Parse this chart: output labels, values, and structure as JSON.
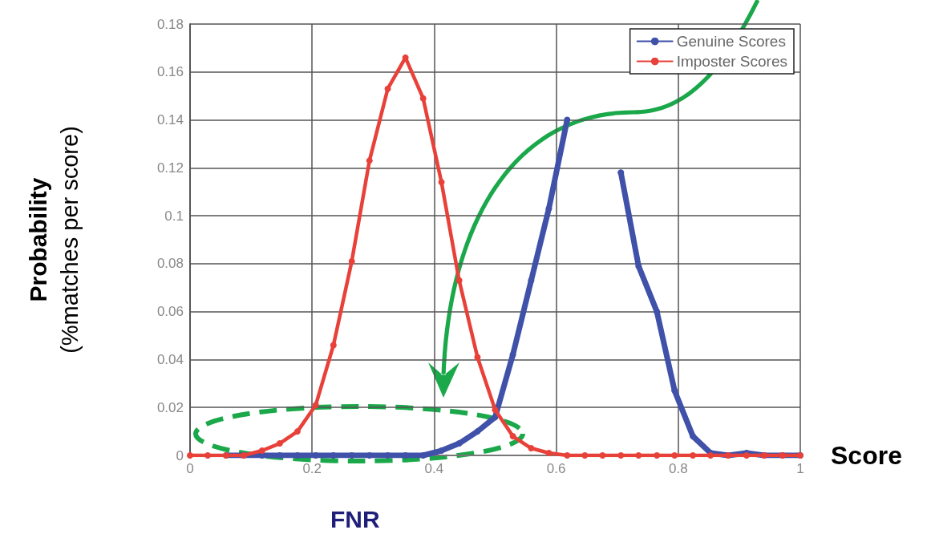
{
  "chart_data": {
    "type": "line",
    "xlabel": "Score",
    "ylabel": "Probability\n(%matches per score)",
    "x": [
      0,
      0.029,
      0.059,
      0.088,
      0.118,
      0.147,
      0.176,
      0.206,
      0.235,
      0.265,
      0.294,
      0.324,
      0.353,
      0.382,
      0.412,
      0.441,
      0.471,
      0.5,
      0.529,
      0.559,
      0.588,
      0.618,
      0.647,
      0.676,
      0.706,
      0.735,
      0.765,
      0.794,
      0.824,
      0.853,
      0.882,
      0.912,
      0.941,
      0.971,
      1
    ],
    "series": [
      {
        "name": "Genuine Scores",
        "color": "#3f51a8",
        "values": [
          null,
          null,
          0,
          0,
          0,
          0,
          0,
          0,
          0,
          0,
          0,
          0,
          0,
          0,
          0.002,
          0.005,
          0.01,
          0.016,
          0.042,
          0.073,
          0.103,
          0.14,
          null,
          null,
          0.118,
          0.079,
          0.06,
          0.027,
          0.008,
          0.001,
          0,
          0.001,
          0,
          0,
          0
        ]
      },
      {
        "name": "Imposter Scores",
        "color": "#e8413a",
        "values": [
          0,
          0,
          0,
          0,
          0.002,
          0.005,
          0.01,
          0.021,
          0.046,
          0.081,
          0.123,
          0.153,
          0.166,
          0.149,
          0.114,
          0.073,
          0.041,
          0.019,
          0.008,
          0.003,
          0.001,
          0,
          0,
          0,
          0,
          0,
          0,
          0,
          0,
          0,
          0,
          0,
          0,
          0,
          0
        ]
      }
    ],
    "xlim": [
      0,
      1
    ],
    "xticks": [
      0,
      0.2,
      0.4,
      0.6,
      0.8,
      1
    ],
    "ylim": [
      0,
      0.18
    ],
    "yticks": [
      0,
      0.02,
      0.04,
      0.06,
      0.08,
      0.1,
      0.12,
      0.14,
      0.16,
      0.18
    ],
    "grid": true,
    "legend": "top right",
    "marker": "circle",
    "line_style": "solid",
    "annotations": [
      "FNR"
    ]
  }
}
